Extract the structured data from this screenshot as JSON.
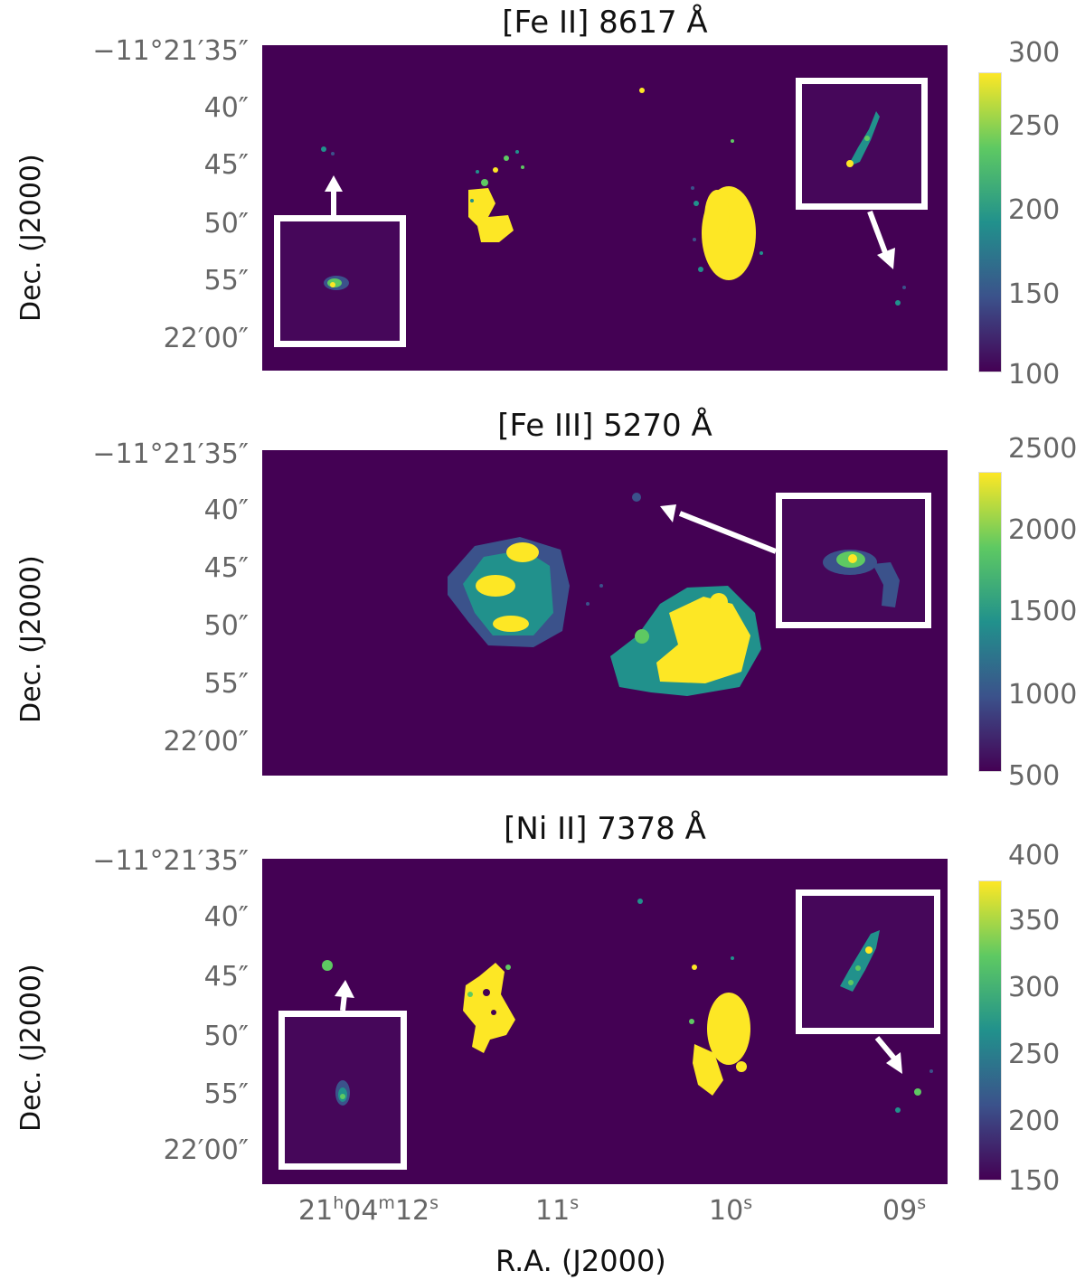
{
  "chart_data": [
    {
      "type": "heatmap",
      "title": "[Fe II] 8617 Å",
      "ylabel": "Dec. (J2000)",
      "yticks": [
        "−11°21′35″",
        "40″",
        "45″",
        "50″",
        "55″",
        "22′00″"
      ],
      "colorbar": {
        "ticks": [
          "300",
          "250",
          "200",
          "150",
          "100"
        ],
        "range": [
          100,
          300
        ],
        "colormap": "viridis"
      },
      "insets": 2
    },
    {
      "type": "heatmap",
      "title": "[Fe III] 5270 Å",
      "ylabel": "Dec. (J2000)",
      "yticks": [
        "−11°21′35″",
        "40″",
        "45″",
        "50″",
        "55″",
        "22′00″"
      ],
      "colorbar": {
        "ticks": [
          "2500",
          "2000",
          "1500",
          "1000",
          "500"
        ],
        "range": [
          500,
          2500
        ],
        "colormap": "viridis"
      },
      "insets": 1
    },
    {
      "type": "heatmap",
      "title": "[Ni II] 7378 Å",
      "ylabel": "Dec. (J2000)",
      "yticks": [
        "−11°21′35″",
        "40″",
        "45″",
        "50″",
        "55″",
        "22′00″"
      ],
      "colorbar": {
        "ticks": [
          "400",
          "350",
          "300",
          "250",
          "200",
          "150"
        ],
        "range": [
          150,
          400
        ],
        "colormap": "viridis"
      },
      "insets": 2
    }
  ],
  "xaxis": {
    "label": "R.A. (J2000)",
    "ticks": [
      {
        "h": "21",
        "hs": "h",
        "m": "04",
        "ms": "m",
        "s": "12",
        "ss": "s"
      },
      {
        "s": "11",
        "ss": "s"
      },
      {
        "s": "10",
        "ss": "s"
      },
      {
        "s": "09",
        "ss": "s"
      }
    ]
  },
  "colors": {
    "background": "#440154",
    "low": "#440154",
    "mid": "#21918c",
    "high": "#fde725",
    "inset_border": "#ffffff"
  }
}
